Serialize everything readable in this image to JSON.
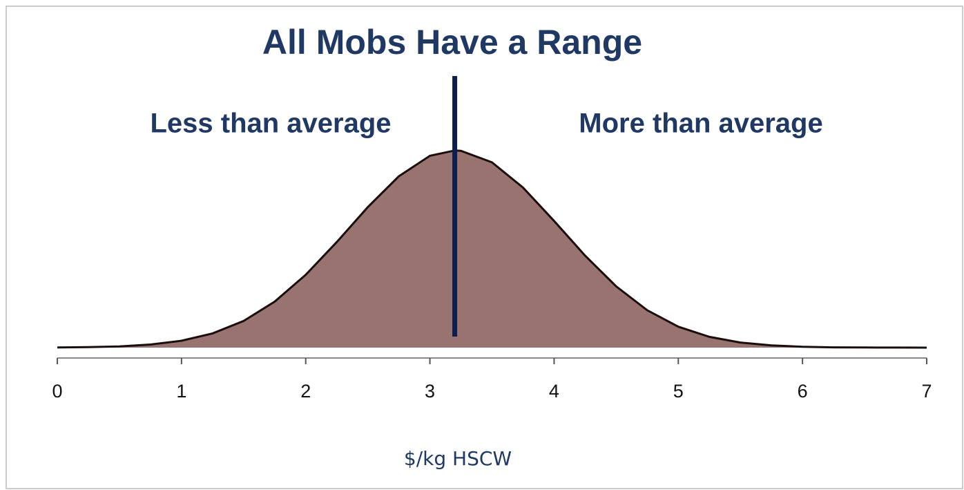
{
  "chart_data": {
    "type": "area",
    "title": "All Mobs Have a Range",
    "annotations": [
      "Less than average",
      "More than average"
    ],
    "x_label": "$/kg HSCW",
    "x": [
      0,
      0.25,
      0.5,
      0.75,
      1,
      1.25,
      1.5,
      1.75,
      2,
      2.25,
      2.5,
      2.75,
      3,
      3.2,
      3.25,
      3.5,
      3.75,
      4,
      4.25,
      4.5,
      4.75,
      5,
      5.25,
      5.5,
      5.75,
      6,
      6.25,
      6.5,
      6.75,
      7
    ],
    "values": [
      0.0004,
      0.0011,
      0.003,
      0.0074,
      0.0165,
      0.0338,
      0.0635,
      0.1095,
      0.1733,
      0.2513,
      0.3343,
      0.4079,
      0.4565,
      0.4693,
      0.4685,
      0.441,
      0.3807,
      0.3014,
      0.2188,
      0.1457,
      0.089,
      0.0499,
      0.0256,
      0.0121,
      0.0052,
      0.0021,
      0.0007,
      0.0003,
      0.0001,
      0
    ],
    "color": "#98736f",
    "mean_line": 3.2,
    "mean_line_color": "#0d1f4f",
    "xlim": [
      0,
      7
    ],
    "xticks": [
      0,
      1,
      2,
      3,
      4,
      5,
      6,
      7
    ],
    "ylim": [
      0,
      0.5
    ],
    "grid": false
  }
}
